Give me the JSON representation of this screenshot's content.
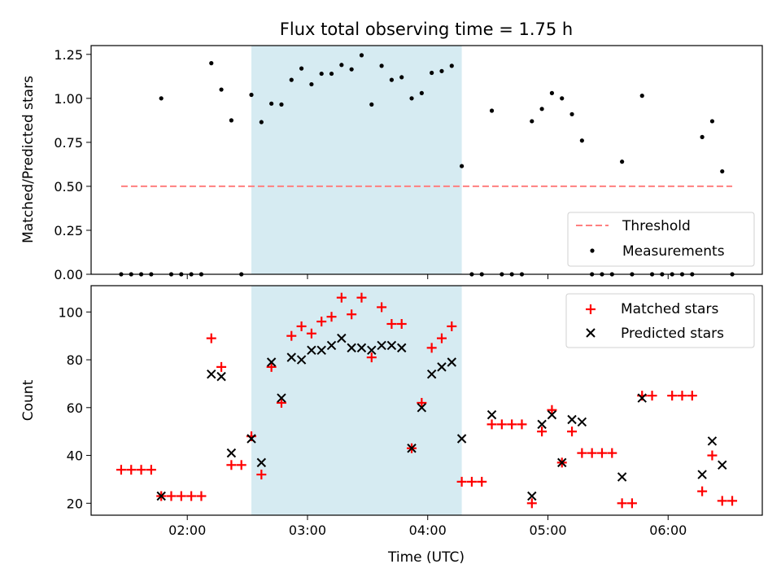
{
  "figure": {
    "title": "Flux total observing time = 1.75 h",
    "xlabel": "Time (UTC)",
    "shaded_span": {
      "start": "02:32",
      "end": "04:17",
      "color": "#add8e6"
    }
  },
  "chart_data": [
    {
      "type": "scatter",
      "ylabel": "Matched/Predicted stars",
      "ylim": [
        0,
        1.3
      ],
      "yticks": [
        0.0,
        0.25,
        0.5,
        0.75,
        1.0,
        1.25
      ],
      "ytick_labels": [
        "0.00",
        "0.25",
        "0.50",
        "0.75",
        "1.00",
        "1.25"
      ],
      "legend": {
        "placement": "lower-right"
      },
      "threshold": {
        "name": "Threshold",
        "value": 0.5,
        "x_start": "01:27",
        "x_end": "06:32",
        "color": "#ff7f7f",
        "style": "dashed"
      },
      "series": [
        {
          "name": "Measurements",
          "color": "#000000",
          "marker": "dot",
          "points": [
            [
              "01:27",
              0.0
            ],
            [
              "01:32",
              0.0
            ],
            [
              "01:37",
              0.0
            ],
            [
              "01:42",
              0.0
            ],
            [
              "01:47",
              1.0
            ],
            [
              "01:52",
              0.0
            ],
            [
              "01:57",
              0.0
            ],
            [
              "02:02",
              0.0
            ],
            [
              "02:07",
              0.0
            ],
            [
              "02:12",
              1.2
            ],
            [
              "02:17",
              1.05
            ],
            [
              "02:22",
              0.875
            ],
            [
              "02:27",
              0.0
            ],
            [
              "02:32",
              1.02
            ],
            [
              "02:37",
              0.865
            ],
            [
              "02:42",
              0.97
            ],
            [
              "02:47",
              0.965
            ],
            [
              "02:52",
              1.105
            ],
            [
              "02:57",
              1.17
            ],
            [
              "03:02",
              1.08
            ],
            [
              "03:07",
              1.14
            ],
            [
              "03:12",
              1.14
            ],
            [
              "03:17",
              1.19
            ],
            [
              "03:22",
              1.165
            ],
            [
              "03:27",
              1.245
            ],
            [
              "03:32",
              0.965
            ],
            [
              "03:37",
              1.185
            ],
            [
              "03:42",
              1.105
            ],
            [
              "03:47",
              1.12
            ],
            [
              "03:52",
              1.0
            ],
            [
              "03:57",
              1.03
            ],
            [
              "04:02",
              1.145
            ],
            [
              "04:07",
              1.155
            ],
            [
              "04:12",
              1.185
            ],
            [
              "04:17",
              0.615
            ],
            [
              "04:22",
              0.0
            ],
            [
              "04:27",
              0.0
            ],
            [
              "04:32",
              0.93
            ],
            [
              "04:37",
              0.0
            ],
            [
              "04:42",
              0.0
            ],
            [
              "04:47",
              0.0
            ],
            [
              "04:52",
              0.87
            ],
            [
              "04:57",
              0.94
            ],
            [
              "05:02",
              1.03
            ],
            [
              "05:07",
              1.0
            ],
            [
              "05:12",
              0.91
            ],
            [
              "05:17",
              0.76
            ],
            [
              "05:22",
              0.0
            ],
            [
              "05:27",
              0.0
            ],
            [
              "05:32",
              0.0
            ],
            [
              "05:37",
              0.64
            ],
            [
              "05:42",
              0.0
            ],
            [
              "05:47",
              1.015
            ],
            [
              "05:52",
              0.0
            ],
            [
              "05:57",
              0.0
            ],
            [
              "06:02",
              0.0
            ],
            [
              "06:07",
              0.0
            ],
            [
              "06:12",
              0.0
            ],
            [
              "06:17",
              0.78
            ],
            [
              "06:22",
              0.87
            ],
            [
              "06:27",
              0.585
            ],
            [
              "06:32",
              0.0
            ]
          ]
        }
      ]
    },
    {
      "type": "scatter",
      "ylabel": "Count",
      "ylim": [
        15,
        111
      ],
      "yticks": [
        20,
        40,
        60,
        80,
        100
      ],
      "ytick_labels": [
        "20",
        "40",
        "60",
        "80",
        "100"
      ],
      "xticks": [
        "02:00",
        "03:00",
        "04:00",
        "05:00",
        "06:00"
      ],
      "xlim": [
        "01:12",
        "06:47"
      ],
      "legend": {
        "placement": "upper-right"
      },
      "series": [
        {
          "name": "Matched stars",
          "color": "#ff0000",
          "marker": "plus",
          "points": [
            [
              "01:27",
              34
            ],
            [
              "01:32",
              34
            ],
            [
              "01:37",
              34
            ],
            [
              "01:42",
              34
            ],
            [
              "01:47",
              23
            ],
            [
              "01:52",
              23
            ],
            [
              "01:57",
              23
            ],
            [
              "02:02",
              23
            ],
            [
              "02:07",
              23
            ],
            [
              "02:12",
              89
            ],
            [
              "02:17",
              77
            ],
            [
              "02:22",
              36
            ],
            [
              "02:27",
              36
            ],
            [
              "02:32",
              48
            ],
            [
              "02:37",
              32
            ],
            [
              "02:42",
              77
            ],
            [
              "02:47",
              62
            ],
            [
              "02:52",
              90
            ],
            [
              "02:57",
              94
            ],
            [
              "03:02",
              91
            ],
            [
              "03:07",
              96
            ],
            [
              "03:12",
              98
            ],
            [
              "03:17",
              106
            ],
            [
              "03:22",
              99
            ],
            [
              "03:27",
              106
            ],
            [
              "03:32",
              81
            ],
            [
              "03:37",
              102
            ],
            [
              "03:42",
              95
            ],
            [
              "03:47",
              95
            ],
            [
              "03:52",
              43
            ],
            [
              "03:57",
              62
            ],
            [
              "04:02",
              85
            ],
            [
              "04:07",
              89
            ],
            [
              "04:12",
              94
            ],
            [
              "04:17",
              29
            ],
            [
              "04:22",
              29
            ],
            [
              "04:27",
              29
            ],
            [
              "04:32",
              53
            ],
            [
              "04:37",
              53
            ],
            [
              "04:42",
              53
            ],
            [
              "04:47",
              53
            ],
            [
              "04:52",
              20
            ],
            [
              "04:57",
              50
            ],
            [
              "05:02",
              59
            ],
            [
              "05:07",
              37
            ],
            [
              "05:12",
              50
            ],
            [
              "05:17",
              41
            ],
            [
              "05:22",
              41
            ],
            [
              "05:27",
              41
            ],
            [
              "05:32",
              41
            ],
            [
              "05:37",
              20
            ],
            [
              "05:42",
              20
            ],
            [
              "05:47",
              65
            ],
            [
              "05:52",
              65
            ],
            [
              "06:02",
              65
            ],
            [
              "06:07",
              65
            ],
            [
              "06:12",
              65
            ],
            [
              "06:17",
              25
            ],
            [
              "06:22",
              40
            ],
            [
              "06:27",
              21
            ],
            [
              "06:32",
              21
            ]
          ]
        },
        {
          "name": "Predicted stars",
          "color": "#000000",
          "marker": "x",
          "points": [
            [
              "01:47",
              23
            ],
            [
              "02:12",
              74
            ],
            [
              "02:17",
              73
            ],
            [
              "02:22",
              41
            ],
            [
              "02:32",
              47
            ],
            [
              "02:37",
              37
            ],
            [
              "02:42",
              79
            ],
            [
              "02:47",
              64
            ],
            [
              "02:52",
              81
            ],
            [
              "02:57",
              80
            ],
            [
              "03:02",
              84
            ],
            [
              "03:07",
              84
            ],
            [
              "03:12",
              86
            ],
            [
              "03:17",
              89
            ],
            [
              "03:22",
              85
            ],
            [
              "03:27",
              85
            ],
            [
              "03:32",
              84
            ],
            [
              "03:37",
              86
            ],
            [
              "03:42",
              86
            ],
            [
              "03:47",
              85
            ],
            [
              "03:52",
              43
            ],
            [
              "03:57",
              60
            ],
            [
              "04:02",
              74
            ],
            [
              "04:07",
              77
            ],
            [
              "04:12",
              79
            ],
            [
              "04:17",
              47
            ],
            [
              "04:32",
              57
            ],
            [
              "04:52",
              23
            ],
            [
              "04:57",
              53
            ],
            [
              "05:02",
              57
            ],
            [
              "05:07",
              37
            ],
            [
              "05:12",
              55
            ],
            [
              "05:17",
              54
            ],
            [
              "05:37",
              31
            ],
            [
              "05:47",
              64
            ],
            [
              "06:17",
              32
            ],
            [
              "06:22",
              46
            ],
            [
              "06:27",
              36
            ]
          ]
        }
      ]
    }
  ]
}
